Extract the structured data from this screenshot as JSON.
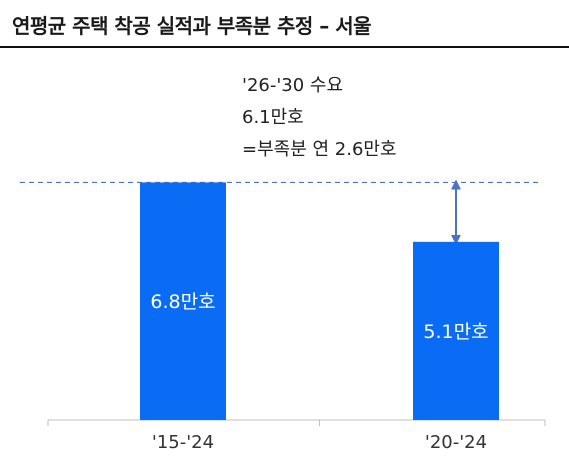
{
  "chart_data": {
    "type": "bar",
    "title": "연평균 주택 착공 실적과 부족분 추정 – 서울",
    "categories": [
      "'15-'24",
      "'20-'24"
    ],
    "values": [
      6.8,
      5.1
    ],
    "data_labels": [
      "6.8만호",
      "5.1만호"
    ],
    "unit": "만호",
    "ylim": [
      0,
      7.5
    ],
    "bar_color": "#0a6cf5",
    "reference_line": {
      "value": 6.8,
      "color": "#4a74c0",
      "style": "dashed"
    },
    "gap_arrow": {
      "from": 6.8,
      "to": 5.1,
      "color": "#4a74c0"
    },
    "annotation_lines": [
      "'26-'30 수요",
      "6.1만호",
      "=부족분 연 2.6만호"
    ],
    "grid": false
  }
}
